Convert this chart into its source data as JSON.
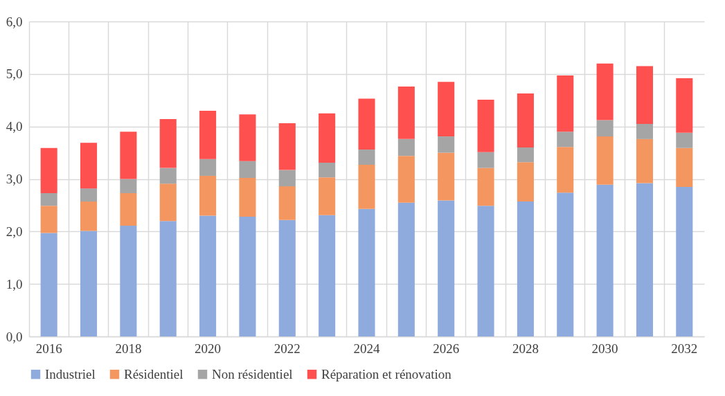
{
  "chart_data": {
    "type": "bar",
    "stacked": true,
    "categories": [
      "2016",
      null,
      "2018",
      null,
      "2020",
      null,
      "2022",
      null,
      "2024",
      null,
      "2026",
      null,
      "2028",
      null,
      "2030",
      null,
      "2032"
    ],
    "series": [
      {
        "name": "Industriel",
        "color": "#8faadc",
        "values": [
          1.97,
          2.01,
          2.11,
          2.2,
          2.3,
          2.28,
          2.22,
          2.31,
          2.43,
          2.55,
          2.59,
          2.49,
          2.57,
          2.74,
          2.89,
          2.92,
          2.85
        ]
      },
      {
        "name": "Résidentiel",
        "color": "#f4965f",
        "values": [
          0.52,
          0.56,
          0.62,
          0.71,
          0.76,
          0.74,
          0.64,
          0.72,
          0.84,
          0.89,
          0.91,
          0.72,
          0.75,
          0.87,
          0.92,
          0.84,
          0.74
        ]
      },
      {
        "name": "Non résidentiel",
        "color": "#a5a5a5",
        "values": [
          0.24,
          0.25,
          0.27,
          0.3,
          0.32,
          0.32,
          0.31,
          0.28,
          0.29,
          0.32,
          0.31,
          0.3,
          0.28,
          0.29,
          0.31,
          0.29,
          0.29
        ]
      },
      {
        "name": "Réparation et rénovation",
        "color": "#ff5050",
        "values": [
          0.86,
          0.87,
          0.9,
          0.93,
          0.92,
          0.89,
          0.89,
          0.94,
          0.97,
          1.0,
          1.04,
          1.0,
          1.03,
          1.07,
          1.08,
          1.1,
          1.04
        ]
      }
    ],
    "ylim": [
      0,
      6
    ],
    "yticks": [
      {
        "value": 0,
        "label": "0,0"
      },
      {
        "value": 1,
        "label": "1,0"
      },
      {
        "value": 2,
        "label": "2,0"
      },
      {
        "value": 3,
        "label": "3,0"
      },
      {
        "value": 4,
        "label": "4,0"
      },
      {
        "value": 5,
        "label": "5,0"
      },
      {
        "value": 6,
        "label": "6,0"
      }
    ],
    "grid": true,
    "legend": "bottom"
  }
}
